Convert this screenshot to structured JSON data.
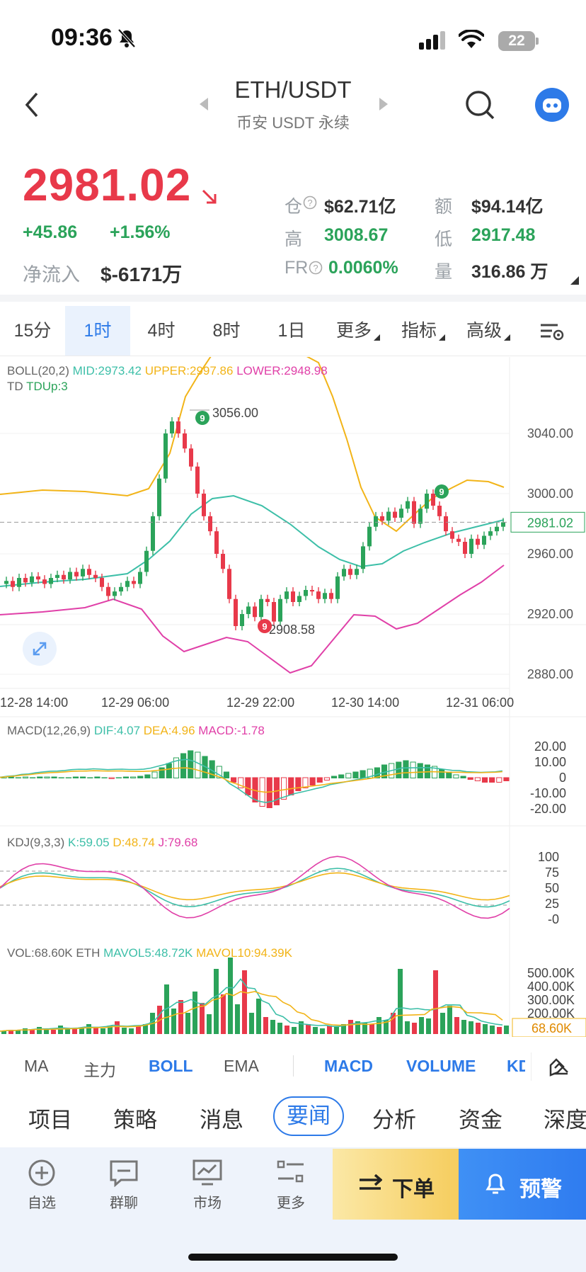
{
  "status_bar": {
    "time": "09:36",
    "battery": "22"
  },
  "header": {
    "pair": "ETH/USDT",
    "exchange": "币安 USDT 永续"
  },
  "price": {
    "last": "2981.02",
    "change": "+45.86",
    "change_pct": "+1.56%",
    "netflow_label": "净流入",
    "netflow_value": "$-6171万"
  },
  "stats": [
    {
      "label": "仓",
      "value": "$62.71亿",
      "has_help": true
    },
    {
      "label": "额",
      "value": "$94.14亿"
    },
    {
      "label": "高",
      "value": "3008.67",
      "color": "green"
    },
    {
      "label": "低",
      "value": "2917.48",
      "color": "green"
    },
    {
      "label": "FR",
      "value": "0.0060%",
      "has_help": true,
      "color": "green"
    },
    {
      "label": "量",
      "value": "316.86 万"
    }
  ],
  "timeframes": [
    "15分",
    "1时",
    "4时",
    "8时",
    "1日",
    "更多",
    "指标",
    "高级"
  ],
  "active_timeframe": "1时",
  "boll_legend": {
    "name": "BOLL(20,2)",
    "mid": "MID:2973.42",
    "upper": "UPPER:2997.86",
    "lower": "LOWER:2948.98"
  },
  "td_legend": {
    "name": "TD",
    "value": "TDUp:3"
  },
  "main_chart": {
    "y_ticks": [
      "3040.00",
      "3000.00",
      "2960.00",
      "2920.00",
      "2880.00"
    ],
    "current_price_tag": "2981.02",
    "high_annotation": "3056.00",
    "low_annotation": "2908.58",
    "td_marks": [
      "9",
      "9",
      "9"
    ],
    "x_ticks": [
      "12-28 14:00",
      "12-29 06:00",
      "12-29 22:00",
      "12-30 14:00",
      "12-31 06:00"
    ]
  },
  "macd_legend": {
    "name": "MACD(12,26,9)",
    "dif": "DIF:4.07",
    "dea": "DEA:4.96",
    "macd": "MACD:-1.78"
  },
  "macd_ticks": [
    "20.00",
    "10.00",
    "0",
    "-10.00",
    "-20.00"
  ],
  "kdj_legend": {
    "name": "KDJ(9,3,3)",
    "k": "K:59.05",
    "d": "D:48.74",
    "j": "J:79.68"
  },
  "kdj_ticks": [
    "100",
    "75",
    "50",
    "25",
    "-0"
  ],
  "vol_legend": {
    "name": "VOL:68.60K ETH",
    "mavol5": "MAVOL5:48.72K",
    "mavol10": "MAVOL10:94.39K"
  },
  "vol_ticks": [
    "500.00K",
    "400.00K",
    "300.00K",
    "200.00K"
  ],
  "vol_tag": "68.60K",
  "indicator_tabs": [
    "MA",
    "主力",
    "BOLL",
    "EMA",
    "MACD",
    "VOLUME",
    "KD"
  ],
  "indicator_selected": [
    "BOLL",
    "MACD",
    "VOLUME",
    "KD"
  ],
  "news_tabs": [
    "项目",
    "策略",
    "消息",
    "要闻",
    "分析",
    "资金",
    "深度"
  ],
  "news_selected": "要闻",
  "bottom_nav": [
    "自选",
    "群聊",
    "市场",
    "更多"
  ],
  "order_button": "下单",
  "alert_button": "预警",
  "colors": {
    "up": "#2ba35a",
    "down": "#e8394a",
    "accent": "#2d7ae8",
    "boll_mid": "#3dbfa8",
    "boll_upper": "#f2b418",
    "boll_lower": "#e040a8"
  }
}
